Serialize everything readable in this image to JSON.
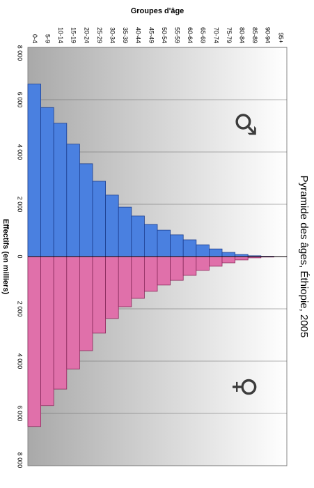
{
  "chart_data": {
    "type": "pyramid",
    "title": "Pyramide des âges, Éthiopie, 2005",
    "x_label": "Groupes d'âge",
    "y_label": "Effectifs (en milliers)",
    "categories": [
      "0-4",
      "5-9",
      "10-14",
      "15-19",
      "20-24",
      "25-29",
      "30-34",
      "35-39",
      "40-44",
      "45-49",
      "50-54",
      "55-59",
      "60-64",
      "65-69",
      "70-74",
      "75-79",
      "80-84",
      "85-89",
      "90-94",
      "95+"
    ],
    "series": [
      {
        "name": "♂",
        "color": "#4a80e0",
        "values": [
          6600,
          5700,
          5100,
          4300,
          3550,
          2880,
          2350,
          1890,
          1550,
          1230,
          1010,
          830,
          640,
          450,
          290,
          160,
          80,
          30,
          10,
          2
        ]
      },
      {
        "name": "♀",
        "color": "#e070aa",
        "values": [
          6500,
          5700,
          5070,
          4300,
          3600,
          2930,
          2370,
          1920,
          1600,
          1330,
          1090,
          910,
          720,
          530,
          370,
          240,
          130,
          50,
          20,
          5
        ]
      }
    ],
    "ylim": [
      -8000,
      8000
    ],
    "yticks": [
      {
        "value": -8000,
        "label": "8 000"
      },
      {
        "value": -6000,
        "label": "6 000"
      },
      {
        "value": -4000,
        "label": "4 000"
      },
      {
        "value": -2000,
        "label": "2 000"
      },
      0,
      {
        "value": 2000,
        "label": "2 000"
      },
      {
        "value": 4000,
        "label": "4 000"
      },
      {
        "value": 6000,
        "label": "6 000"
      },
      {
        "value": 8000,
        "label": "8 000"
      }
    ],
    "grid": true
  }
}
